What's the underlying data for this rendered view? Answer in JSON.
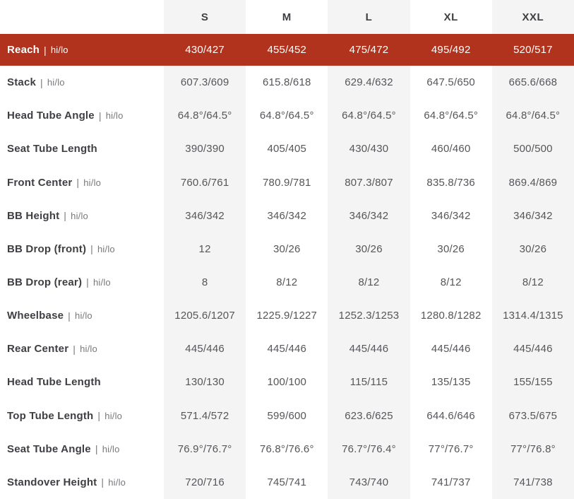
{
  "colors": {
    "highlight_row_bg": "#b1331d",
    "highlight_text": "#ffffff",
    "stripe_column_bg": "#f4f4f4",
    "label_text": "#3e3f43",
    "value_text": "#55565a",
    "suffix_text": "#77787c"
  },
  "table": {
    "title": "bike-geometry-table",
    "columns": [
      "S",
      "M",
      "L",
      "XL",
      "XXL"
    ],
    "striped_columns": [
      true,
      false,
      true,
      false,
      true
    ],
    "label_separator": "|",
    "rows": [
      {
        "label": "Reach",
        "suffix": "hi/lo",
        "highlight": true,
        "values": [
          "430/427",
          "455/452",
          "475/472",
          "495/492",
          "520/517"
        ]
      },
      {
        "label": "Stack",
        "suffix": "hi/lo",
        "highlight": false,
        "values": [
          "607.3/609",
          "615.8/618",
          "629.4/632",
          "647.5/650",
          "665.6/668"
        ]
      },
      {
        "label": "Head Tube Angle",
        "suffix": "hi/lo",
        "highlight": false,
        "values": [
          "64.8°/64.5°",
          "64.8°/64.5°",
          "64.8°/64.5°",
          "64.8°/64.5°",
          "64.8°/64.5°"
        ]
      },
      {
        "label": "Seat Tube Length",
        "suffix": "",
        "highlight": false,
        "values": [
          "390/390",
          "405/405",
          "430/430",
          "460/460",
          "500/500"
        ]
      },
      {
        "label": "Front Center",
        "suffix": "hi/lo",
        "highlight": false,
        "values": [
          "760.6/761",
          "780.9/781",
          "807.3/807",
          "835.8/736",
          "869.4/869"
        ]
      },
      {
        "label": "BB Height",
        "suffix": "hi/lo",
        "highlight": false,
        "values": [
          "346/342",
          "346/342",
          "346/342",
          "346/342",
          "346/342"
        ]
      },
      {
        "label": "BB Drop (front)",
        "suffix": "hi/lo",
        "highlight": false,
        "values": [
          "12",
          "30/26",
          "30/26",
          "30/26",
          "30/26"
        ]
      },
      {
        "label": "BB Drop (rear)",
        "suffix": "hi/lo",
        "highlight": false,
        "values": [
          "8",
          "8/12",
          "8/12",
          "8/12",
          "8/12"
        ]
      },
      {
        "label": "Wheelbase",
        "suffix": "hi/lo",
        "highlight": false,
        "values": [
          "1205.6/1207",
          "1225.9/1227",
          "1252.3/1253",
          "1280.8/1282",
          "1314.4/1315"
        ]
      },
      {
        "label": "Rear Center",
        "suffix": "hi/lo",
        "highlight": false,
        "values": [
          "445/446",
          "445/446",
          "445/446",
          "445/446",
          "445/446"
        ]
      },
      {
        "label": "Head Tube Length",
        "suffix": "",
        "highlight": false,
        "values": [
          "130/130",
          "100/100",
          "115/115",
          "135/135",
          "155/155"
        ]
      },
      {
        "label": "Top Tube Length",
        "suffix": "hi/lo",
        "highlight": false,
        "values": [
          "571.4/572",
          "599/600",
          "623.6/625",
          "644.6/646",
          "673.5/675"
        ]
      },
      {
        "label": "Seat Tube Angle",
        "suffix": "hi/lo",
        "highlight": false,
        "values": [
          "76.9°/76.7°",
          "76.8°/76.6°",
          "76.7°/76.4°",
          "77°/76.7°",
          "77°/76.8°"
        ]
      },
      {
        "label": "Standover Height",
        "suffix": "hi/lo",
        "highlight": false,
        "values": [
          "720/716",
          "745/741",
          "743/740",
          "741/737",
          "741/738"
        ]
      }
    ]
  }
}
